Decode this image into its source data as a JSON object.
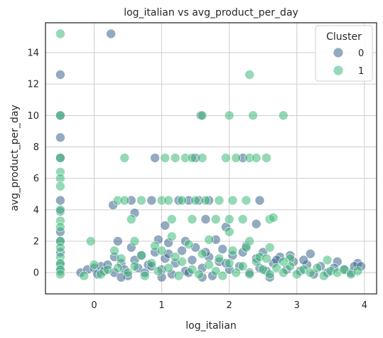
{
  "chart_data": {
    "type": "scatter",
    "title": "log_italian vs avg_product_per_day",
    "xlabel": "log_italian",
    "ylabel": "avg_product_per_day",
    "xlim": [
      -0.72,
      4.18
    ],
    "ylim": [
      -1.35,
      15.9
    ],
    "xticks": [
      0,
      1,
      2,
      3,
      4
    ],
    "yticks": [
      0,
      2,
      4,
      6,
      8,
      10,
      12,
      14
    ],
    "grid": true,
    "legend": {
      "title": "Cluster",
      "placement": "top-right",
      "entries": [
        "0",
        "1"
      ]
    },
    "colors": {
      "0": "#3b648c",
      "1": "#3fba7a"
    },
    "series": [
      {
        "name": "0",
        "points": [
          [
            -0.5,
            12.6
          ],
          [
            -0.5,
            10.0
          ],
          [
            -0.5,
            8.6
          ],
          [
            -0.5,
            7.3
          ],
          [
            -0.5,
            4.6
          ],
          [
            -0.5,
            3.9
          ],
          [
            -0.5,
            2.6
          ],
          [
            -0.5,
            2.0
          ],
          [
            -0.5,
            1.3
          ],
          [
            -0.5,
            0.5
          ],
          [
            -0.5,
            0.1
          ],
          [
            0.25,
            15.2
          ],
          [
            0.28,
            4.3
          ],
          [
            0.35,
            2.0
          ],
          [
            0.55,
            4.6
          ],
          [
            0.6,
            3.8
          ],
          [
            0.85,
            4.6
          ],
          [
            0.9,
            7.3
          ],
          [
            0.95,
            2.1
          ],
          [
            1.05,
            3.0
          ],
          [
            1.1,
            1.9
          ],
          [
            1.25,
            4.6
          ],
          [
            1.35,
            2.0
          ],
          [
            1.4,
            4.6
          ],
          [
            1.5,
            7.3
          ],
          [
            1.55,
            4.6
          ],
          [
            1.58,
            10.0
          ],
          [
            1.65,
            3.4
          ],
          [
            1.7,
            4.6
          ],
          [
            1.8,
            2.1
          ],
          [
            1.95,
            2.9
          ],
          [
            2.2,
            7.3
          ],
          [
            2.4,
            3.1
          ],
          [
            2.45,
            4.6
          ],
          [
            3.2,
            1.2
          ],
          [
            3.6,
            0.7
          ],
          [
            3.9,
            0.6
          ],
          [
            -0.2,
            0.0
          ],
          [
            -0.1,
            0.2
          ],
          [
            0.0,
            0.3
          ],
          [
            0.05,
            -0.1
          ],
          [
            0.1,
            0.4
          ],
          [
            0.15,
            0.1
          ],
          [
            0.2,
            0.5
          ],
          [
            0.3,
            0.0
          ],
          [
            0.4,
            0.6
          ],
          [
            0.45,
            0.2
          ],
          [
            0.5,
            -0.2
          ],
          [
            0.6,
            0.8
          ],
          [
            0.65,
            0.3
          ],
          [
            0.7,
            1.1
          ],
          [
            0.75,
            0.0
          ],
          [
            0.8,
            0.5
          ],
          [
            0.9,
            1.3
          ],
          [
            1.0,
            0.2
          ],
          [
            1.05,
            0.9
          ],
          [
            1.15,
            -0.1
          ],
          [
            1.2,
            0.6
          ],
          [
            1.3,
            1.4
          ],
          [
            1.35,
            0.1
          ],
          [
            1.45,
            0.8
          ],
          [
            1.5,
            1.6
          ],
          [
            1.6,
            0.3
          ],
          [
            1.7,
            1.0
          ],
          [
            1.75,
            -0.2
          ],
          [
            1.85,
            0.7
          ],
          [
            1.9,
            1.5
          ],
          [
            2.0,
            0.2
          ],
          [
            2.05,
            1.1
          ],
          [
            2.15,
            0.4
          ],
          [
            2.25,
            1.7
          ],
          [
            2.3,
            0.0
          ],
          [
            2.4,
            0.9
          ],
          [
            2.5,
            1.3
          ],
          [
            2.55,
            0.1
          ],
          [
            2.65,
            0.6
          ],
          [
            2.75,
            1.0
          ],
          [
            2.85,
            0.2
          ],
          [
            2.95,
            0.7
          ],
          [
            3.05,
            0.1
          ],
          [
            3.15,
            0.5
          ],
          [
            3.25,
            -0.1
          ],
          [
            3.35,
            0.4
          ],
          [
            3.45,
            0.0
          ],
          [
            3.55,
            0.3
          ],
          [
            3.7,
            0.2
          ],
          [
            3.8,
            0.0
          ],
          [
            3.85,
            0.4
          ],
          [
            3.95,
            0.4
          ],
          [
            0.3,
            1.0
          ],
          [
            0.55,
            1.6
          ],
          [
            0.85,
            0.4
          ],
          [
            1.1,
            1.2
          ],
          [
            1.4,
            0.0
          ],
          [
            1.65,
            1.3
          ],
          [
            1.95,
            0.6
          ],
          [
            2.2,
            1.3
          ],
          [
            2.45,
            0.3
          ],
          [
            2.7,
            0.8
          ],
          [
            2.9,
            1.1
          ],
          [
            3.1,
            0.8
          ],
          [
            1.0,
            -0.3
          ],
          [
            1.6,
            -0.3
          ],
          [
            2.6,
            -0.3
          ],
          [
            0.4,
            -0.3
          ]
        ]
      },
      {
        "name": "1",
        "points": [
          [
            -0.5,
            15.2
          ],
          [
            -0.5,
            10.0
          ],
          [
            -0.5,
            7.3
          ],
          [
            -0.5,
            6.4
          ],
          [
            -0.5,
            6.0
          ],
          [
            -0.5,
            5.5
          ],
          [
            -0.5,
            4.0
          ],
          [
            -0.5,
            3.3
          ],
          [
            -0.5,
            2.9
          ],
          [
            -0.5,
            2.0
          ],
          [
            -0.5,
            1.6
          ],
          [
            -0.5,
            1.0
          ],
          [
            -0.5,
            0.6
          ],
          [
            -0.5,
            0.2
          ],
          [
            -0.5,
            -0.1
          ],
          [
            0.45,
            7.3
          ],
          [
            1.05,
            7.3
          ],
          [
            1.2,
            7.3
          ],
          [
            1.35,
            7.3
          ],
          [
            1.45,
            7.3
          ],
          [
            1.6,
            7.3
          ],
          [
            1.95,
            7.3
          ],
          [
            2.1,
            7.3
          ],
          [
            2.3,
            7.3
          ],
          [
            2.4,
            7.3
          ],
          [
            2.55,
            7.3
          ],
          [
            1.6,
            10.0
          ],
          [
            2.0,
            10.0
          ],
          [
            2.35,
            10.0
          ],
          [
            2.8,
            10.0
          ],
          [
            2.3,
            12.6
          ],
          [
            0.35,
            4.6
          ],
          [
            0.45,
            4.6
          ],
          [
            0.7,
            4.6
          ],
          [
            1.0,
            4.6
          ],
          [
            1.1,
            4.6
          ],
          [
            1.3,
            4.6
          ],
          [
            1.5,
            4.6
          ],
          [
            1.65,
            4.6
          ],
          [
            1.85,
            4.6
          ],
          [
            2.05,
            4.6
          ],
          [
            2.25,
            4.6
          ],
          [
            0.55,
            3.4
          ],
          [
            1.15,
            3.4
          ],
          [
            1.45,
            3.4
          ],
          [
            1.8,
            3.4
          ],
          [
            2.0,
            3.4
          ],
          [
            2.2,
            3.4
          ],
          [
            2.6,
            3.4
          ],
          [
            2.65,
            3.5
          ],
          [
            -0.05,
            2.0
          ],
          [
            0.3,
            1.4
          ],
          [
            0.6,
            2.0
          ],
          [
            0.9,
            1.7
          ],
          [
            1.15,
            2.3
          ],
          [
            1.4,
            1.8
          ],
          [
            1.7,
            2.1
          ],
          [
            2.0,
            2.6
          ],
          [
            2.3,
            2.0
          ],
          [
            2.6,
            1.6
          ],
          [
            2.9,
            0.9
          ],
          [
            -0.15,
            -0.2
          ],
          [
            0.0,
            0.5
          ],
          [
            0.1,
            -0.1
          ],
          [
            0.2,
            0.2
          ],
          [
            0.35,
            0.3
          ],
          [
            0.5,
            0.0
          ],
          [
            0.6,
            0.4
          ],
          [
            0.75,
            -0.2
          ],
          [
            0.85,
            0.6
          ],
          [
            0.95,
            0.1
          ],
          [
            1.1,
            0.3
          ],
          [
            1.25,
            -0.2
          ],
          [
            1.3,
            0.7
          ],
          [
            1.45,
            0.2
          ],
          [
            1.55,
            -0.1
          ],
          [
            1.7,
            0.5
          ],
          [
            1.8,
            0.1
          ],
          [
            1.9,
            -0.2
          ],
          [
            2.0,
            0.6
          ],
          [
            2.1,
            0.0
          ],
          [
            2.2,
            0.4
          ],
          [
            2.3,
            -0.1
          ],
          [
            2.4,
            0.7
          ],
          [
            2.5,
            0.2
          ],
          [
            2.6,
            -0.1
          ],
          [
            2.7,
            0.3
          ],
          [
            2.8,
            0.0
          ],
          [
            2.9,
            0.4
          ],
          [
            3.0,
            -0.1
          ],
          [
            3.1,
            0.2
          ],
          [
            3.2,
            0.0
          ],
          [
            3.3,
            0.3
          ],
          [
            3.4,
            -0.2
          ],
          [
            3.5,
            0.1
          ],
          [
            3.6,
            0.0
          ],
          [
            3.7,
            0.2
          ],
          [
            3.8,
            -0.1
          ],
          [
            3.9,
            0.1
          ],
          [
            0.7,
            1.1
          ],
          [
            1.2,
            1.0
          ],
          [
            1.6,
            1.2
          ],
          [
            2.05,
            1.4
          ],
          [
            2.45,
            1.0
          ],
          [
            2.8,
            0.7
          ],
          [
            3.45,
            0.8
          ],
          [
            0.4,
            0.9
          ],
          [
            1.0,
            1.4
          ],
          [
            1.85,
            0.9
          ],
          [
            2.25,
            1.6
          ],
          [
            2.55,
            0.9
          ]
        ]
      }
    ]
  }
}
